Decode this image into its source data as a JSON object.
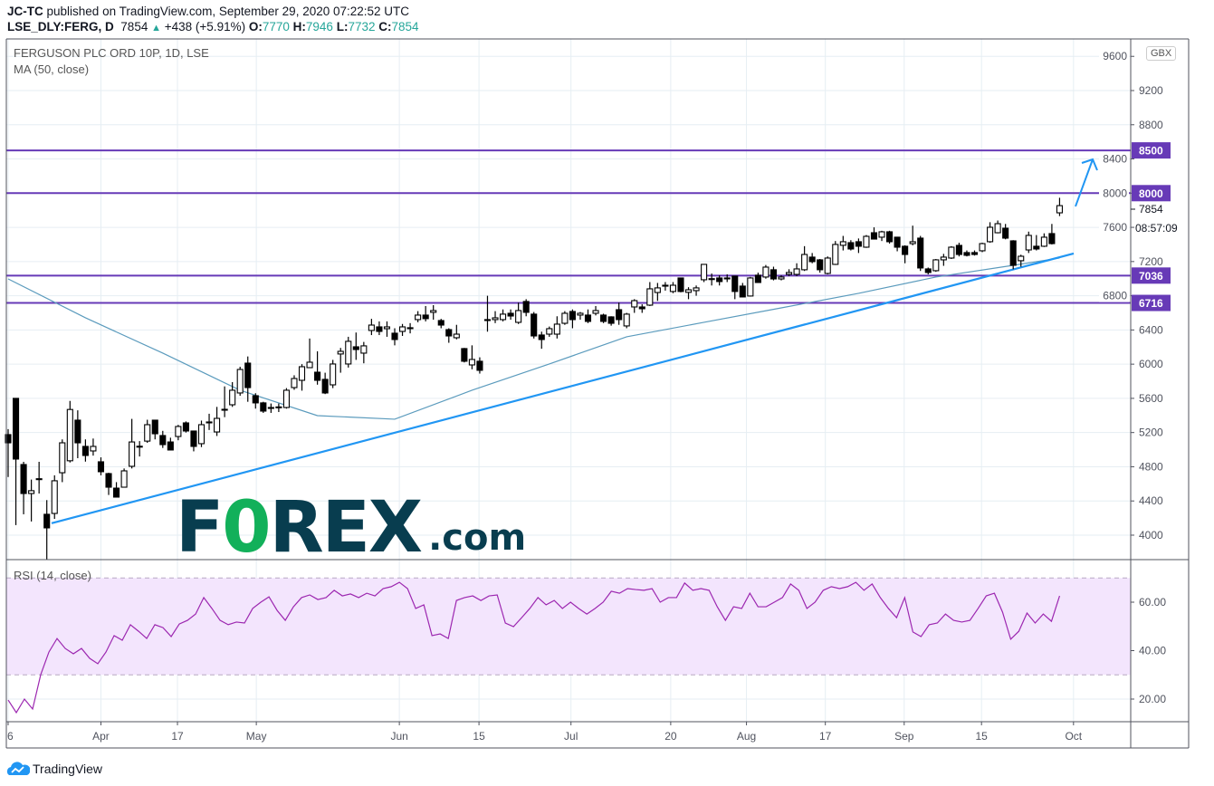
{
  "header": {
    "author": "JC-TC",
    "published": "published on TradingView.com, September 29, 2020 07:22:52 UTC",
    "symbol": "LSE_DLY:FERG, D",
    "last": "7854",
    "change": "+438 (+5.91%)",
    "o_label": "O:",
    "o": "7770",
    "h_label": "H:",
    "h": "7946",
    "l_label": "L:",
    "l": "7732",
    "c_label": "C:",
    "c": "7854"
  },
  "legend": {
    "title": "FERGUSON PLC ORD 10P, 1D, LSE",
    "ma": "MA (50, close)",
    "rsi": "RSI (14, close)"
  },
  "currency": "GBX",
  "countdown": "08:57:09",
  "watermark": {
    "f": "F",
    "o": "0",
    "rex": "REX",
    "com": ".com"
  },
  "footer": {
    "brand": "TradingView"
  },
  "colors": {
    "up": "#ffffff",
    "down": "#000000",
    "outline": "#000000",
    "ma": "#5b9bbd",
    "level": "#673ab7",
    "trend": "#2196f3",
    "rsi": "#9c27b0",
    "rsi_band": "#f3e5fd",
    "change": "#26a69a",
    "watermark_dark": "#083d4f",
    "watermark_green": "#12b05a"
  },
  "chart_data": {
    "type": "candlestick",
    "price_axis": {
      "ticks": [
        9600,
        9200,
        8800,
        8400,
        8000,
        7600,
        7200,
        6800,
        6400,
        6000,
        5600,
        5200,
        4800,
        4400,
        4000
      ],
      "range": [
        3700,
        9800
      ]
    },
    "time_axis": {
      "ticks": [
        "6",
        "Apr",
        "17",
        "May",
        "Jun",
        "15",
        "Jul",
        "20",
        "Aug",
        "17",
        "Sep",
        "15",
        "Oct"
      ]
    },
    "last_price": 7854,
    "candles_ohlc": [
      [
        5176,
        5240,
        4680,
        5080
      ],
      [
        5600,
        5600,
        4117,
        4890
      ],
      [
        4826,
        4858,
        4244,
        4487
      ],
      [
        4487,
        4650,
        4160,
        4520
      ],
      [
        4650,
        4858,
        4487,
        4660
      ],
      [
        4244,
        4410,
        3714,
        4085
      ],
      [
        4254,
        4700,
        4190,
        4636
      ],
      [
        4730,
        5120,
        4620,
        5080
      ],
      [
        4870,
        5570,
        4850,
        5470
      ],
      [
        5345,
        5460,
        4900,
        5080
      ],
      [
        5038,
        5120,
        4860,
        4932
      ],
      [
        4985,
        5130,
        4930,
        5038
      ],
      [
        4858,
        4910,
        4700,
        4742
      ],
      [
        4720,
        4730,
        4470,
        4561
      ],
      [
        4550,
        4620,
        4440,
        4445
      ],
      [
        4561,
        4780,
        4561,
        4752
      ],
      [
        4805,
        5360,
        4780,
        5090
      ],
      [
        5035,
        5100,
        4920,
        5040
      ],
      [
        5100,
        5350,
        5080,
        5292
      ],
      [
        5345,
        5345,
        5120,
        5186
      ],
      [
        5165,
        5220,
        5020,
        5059
      ],
      [
        5090,
        5140,
        4990,
        4996
      ],
      [
        5154,
        5290,
        5110,
        5271
      ],
      [
        5313,
        5330,
        5200,
        5218
      ],
      [
        5218,
        5220,
        4980,
        5038
      ],
      [
        5070,
        5340,
        5030,
        5292
      ],
      [
        5320,
        5420,
        5230,
        5324
      ],
      [
        5207,
        5500,
        5160,
        5366
      ],
      [
        5470,
        5740,
        5380,
        5472
      ],
      [
        5525,
        5790,
        5500,
        5695
      ],
      [
        5663,
        5970,
        5630,
        5938
      ],
      [
        6012,
        6090,
        5560,
        5726
      ],
      [
        5631,
        5660,
        5480,
        5547
      ],
      [
        5547,
        5560,
        5430,
        5451
      ],
      [
        5493,
        5540,
        5430,
        5490
      ],
      [
        5500,
        5540,
        5440,
        5493
      ],
      [
        5493,
        5720,
        5480,
        5695
      ],
      [
        5726,
        5870,
        5700,
        5832
      ],
      [
        5811,
        6000,
        5690,
        5970
      ],
      [
        5959,
        6300,
        5960,
        6023
      ],
      [
        5906,
        6150,
        5760,
        5811
      ],
      [
        5822,
        5900,
        5650,
        5663
      ],
      [
        5758,
        6050,
        5720,
        6002
      ],
      [
        6119,
        6190,
        5900,
        6150
      ],
      [
        6002,
        6320,
        5960,
        6267
      ],
      [
        6203,
        6370,
        6050,
        6171
      ],
      [
        6129,
        6260,
        6010,
        6214
      ],
      [
        6394,
        6530,
        6340,
        6457
      ],
      [
        6436,
        6500,
        6340,
        6383
      ],
      [
        6415,
        6500,
        6320,
        6436
      ],
      [
        6362,
        6420,
        6220,
        6288
      ],
      [
        6383,
        6470,
        6330,
        6436
      ],
      [
        6420,
        6480,
        6360,
        6426
      ],
      [
        6521,
        6620,
        6490,
        6574
      ],
      [
        6574,
        6680,
        6500,
        6532
      ],
      [
        6606,
        6690,
        6520,
        6627
      ],
      [
        6510,
        6530,
        6420,
        6457
      ],
      [
        6404,
        6420,
        6250,
        6330
      ],
      [
        6309,
        6460,
        6290,
        6351
      ],
      [
        6182,
        6190,
        6020,
        6034
      ],
      [
        5991,
        6220,
        5940,
        6055
      ],
      [
        6034,
        6080,
        5890,
        5928
      ],
      [
        6520,
        6800,
        6380,
        6521
      ],
      [
        6521,
        6620,
        6480,
        6542
      ],
      [
        6521,
        6640,
        6500,
        6585
      ],
      [
        6595,
        6640,
        6520,
        6563
      ],
      [
        6489,
        6720,
        6470,
        6627
      ],
      [
        6733,
        6760,
        6560,
        6606
      ],
      [
        6585,
        6610,
        6300,
        6330
      ],
      [
        6341,
        6380,
        6180,
        6288
      ],
      [
        6351,
        6440,
        6320,
        6415
      ],
      [
        6351,
        6560,
        6300,
        6468
      ],
      [
        6478,
        6620,
        6460,
        6595
      ],
      [
        6616,
        6640,
        6420,
        6521
      ],
      [
        6574,
        6610,
        6520,
        6595
      ],
      [
        6574,
        6640,
        6480,
        6500
      ],
      [
        6595,
        6680,
        6570,
        6627
      ],
      [
        6574,
        6590,
        6480,
        6500
      ],
      [
        6553,
        6560,
        6450,
        6478
      ],
      [
        6637,
        6720,
        6460,
        6521
      ],
      [
        6447,
        6600,
        6420,
        6585
      ],
      [
        6669,
        6760,
        6600,
        6743
      ],
      [
        6669,
        6700,
        6600,
        6648
      ],
      [
        6690,
        6960,
        6680,
        6881
      ],
      [
        6838,
        6950,
        6740,
        6892
      ],
      [
        6920,
        6960,
        6860,
        6923
      ],
      [
        6850,
        6960,
        6830,
        6923
      ],
      [
        7008,
        7010,
        6840,
        6850
      ],
      [
        6840,
        6900,
        6760,
        6870
      ],
      [
        6860,
        6920,
        6800,
        6892
      ],
      [
        6987,
        7170,
        6960,
        7167
      ],
      [
        7000,
        7060,
        6920,
        6997
      ],
      [
        7008,
        7040,
        6920,
        6966
      ],
      [
        7000,
        7050,
        6960,
        7008
      ],
      [
        7030,
        7030,
        6760,
        6850
      ],
      [
        6913,
        6950,
        6780,
        6786
      ],
      [
        6797,
        7020,
        6790,
        7008
      ],
      [
        7040,
        7070,
        6950,
        6955
      ],
      [
        7019,
        7160,
        7000,
        7135
      ],
      [
        7104,
        7140,
        6980,
        6997
      ],
      [
        6997,
        7040,
        6980,
        7019
      ],
      [
        7050,
        7110,
        7030,
        7072
      ],
      [
        7050,
        7180,
        7030,
        7114
      ],
      [
        7104,
        7380,
        7090,
        7283
      ],
      [
        7252,
        7300,
        7180,
        7199
      ],
      [
        7220,
        7230,
        7070,
        7104
      ],
      [
        7061,
        7260,
        7050,
        7241
      ],
      [
        7167,
        7440,
        7160,
        7400
      ],
      [
        7390,
        7500,
        7330,
        7432
      ],
      [
        7421,
        7450,
        7330,
        7347
      ],
      [
        7432,
        7470,
        7300,
        7379
      ],
      [
        7368,
        7510,
        7360,
        7495
      ],
      [
        7537,
        7600,
        7460,
        7463
      ],
      [
        7485,
        7560,
        7440,
        7548
      ],
      [
        7548,
        7560,
        7410,
        7432
      ],
      [
        7485,
        7490,
        7320,
        7368
      ],
      [
        7379,
        7390,
        7180,
        7283
      ],
      [
        7410,
        7620,
        7390,
        7432
      ],
      [
        7474,
        7500,
        7090,
        7125
      ],
      [
        7114,
        7130,
        7050,
        7072
      ],
      [
        7093,
        7230,
        7080,
        7220
      ],
      [
        7220,
        7290,
        7150,
        7252
      ],
      [
        7241,
        7380,
        7230,
        7368
      ],
      [
        7389,
        7420,
        7260,
        7283
      ],
      [
        7305,
        7330,
        7260,
        7273
      ],
      [
        7305,
        7330,
        7270,
        7283
      ],
      [
        7326,
        7420,
        7310,
        7410
      ],
      [
        7432,
        7660,
        7420,
        7601
      ],
      [
        7537,
        7680,
        7530,
        7643
      ],
      [
        7590,
        7640,
        7460,
        7474
      ],
      [
        7442,
        7450,
        7110,
        7156
      ],
      [
        7210,
        7280,
        7140,
        7262
      ],
      [
        7336,
        7550,
        7300,
        7506
      ],
      [
        7379,
        7510,
        7330,
        7347
      ],
      [
        7379,
        7530,
        7370,
        7485
      ],
      [
        7527,
        7640,
        7400,
        7410
      ],
      [
        7770,
        7946,
        7732,
        7854
      ]
    ],
    "ma50": [
      6997,
      6542,
      6129,
      5695,
      5398,
      5356,
      5695,
      6002,
      6320,
      6489,
      6658,
      6828,
      7019,
      7156,
      7241
    ],
    "levels": [
      8500,
      8000,
      7036,
      6716
    ],
    "trendline": {
      "from": 4139,
      "to": 7294
    },
    "arrow": {
      "from": 7845,
      "to": 8395
    },
    "rsi": {
      "ticks": [
        60,
        40,
        20
      ],
      "band": [
        30,
        70
      ],
      "values": [
        19.6,
        14.4,
        20,
        15.9,
        30.1,
        39.4,
        45,
        40.9,
        38.7,
        40.9,
        36.8,
        34.6,
        39.4,
        46.2,
        44.3,
        50.7,
        48,
        45,
        50.7,
        49.5,
        45.8,
        51,
        52.5,
        55.1,
        61.9,
        57.4,
        52.5,
        50.7,
        51.8,
        51.4,
        57.4,
        60,
        62.2,
        56.6,
        52.5,
        58.1,
        61.9,
        63,
        61.1,
        61.9,
        64.9,
        62.6,
        63.4,
        61.9,
        63.7,
        62.6,
        65.6,
        66.4,
        68.2,
        65.6,
        57.4,
        58.9,
        46.2,
        46.9,
        45,
        60.7,
        61.9,
        62.6,
        60.7,
        62.6,
        63,
        51.4,
        49.9,
        53.6,
        57.4,
        61.9,
        58.9,
        60.7,
        57.4,
        60,
        57.4,
        55.1,
        57.4,
        60,
        64.5,
        63.7,
        65.6,
        65.2,
        64.9,
        65.6,
        60,
        61.9,
        61.9,
        67.9,
        64.9,
        65.6,
        64.9,
        58.1,
        52.5,
        58.1,
        57.4,
        63.7,
        58.1,
        58.1,
        60,
        61.9,
        67.5,
        64.9,
        57.4,
        60,
        64.9,
        66.4,
        65.6,
        66.4,
        68.2,
        64.9,
        67.5,
        61.9,
        57.4,
        53.6,
        61.9,
        47.7,
        45.8,
        50.7,
        51.4,
        55.1,
        52.5,
        51.8,
        52.5,
        57.4,
        62.6,
        63.7,
        55.9,
        44.7,
        48,
        55.5,
        51.4,
        55.1,
        52.1,
        62.6
      ]
    }
  }
}
